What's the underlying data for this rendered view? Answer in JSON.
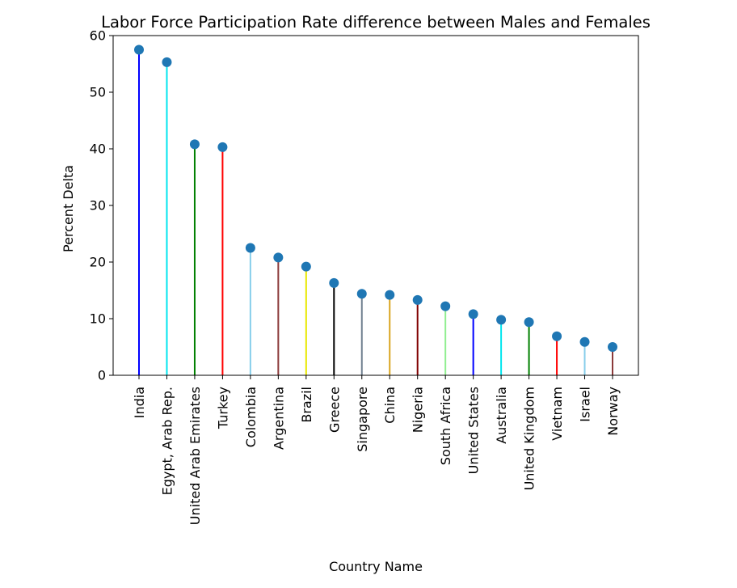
{
  "chart_data": {
    "type": "lollipop",
    "title": "Labor Force Participation Rate difference between Males and Females",
    "xlabel": "Country Name",
    "ylabel": "Percent Delta",
    "ylim": [
      0,
      60
    ],
    "yticks": [
      0,
      10,
      20,
      30,
      40,
      50,
      60
    ],
    "grid": false,
    "marker_color": "#1f77b4",
    "categories": [
      "India",
      "Egypt, Arab Rep.",
      "United Arab Emirates",
      "Turkey",
      "Colombia",
      "Argentina",
      "Brazil",
      "Greece",
      "Singapore",
      "China",
      "Nigeria",
      "South Africa",
      "United States",
      "Australia",
      "United Kingdom",
      "Vietnam",
      "Israel",
      "Norway"
    ],
    "values": [
      57.5,
      55.3,
      40.8,
      40.3,
      22.5,
      20.8,
      19.2,
      16.3,
      14.4,
      14.2,
      13.3,
      12.2,
      10.8,
      9.8,
      9.4,
      6.9,
      5.9,
      5.0
    ],
    "stem_colors": [
      "#0000ff",
      "#00e5ee",
      "#008000",
      "#ff0000",
      "#87ceeb",
      "#8b3a3a",
      "#e8e800",
      "#000000",
      "#708090",
      "#daa520",
      "#800000",
      "#90ee90",
      "#0000ff",
      "#00e5ee",
      "#008000",
      "#ff0000",
      "#87ceeb",
      "#8b3a3a"
    ]
  }
}
